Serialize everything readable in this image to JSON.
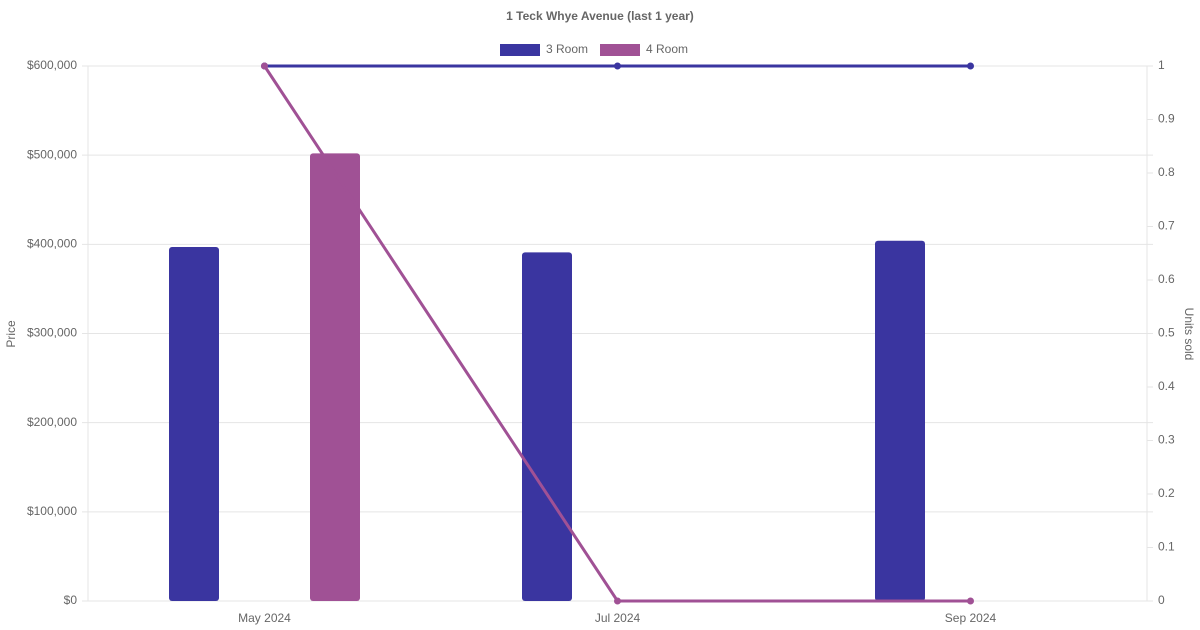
{
  "chart_data": {
    "type": "bar-line",
    "title": "1 Teck Whye Avenue (last 1 year)",
    "y_label": "Price",
    "y2_label": "Units sold",
    "categories": [
      "May 2024",
      "Jul 2024",
      "Sep 2024"
    ],
    "series": [
      {
        "name": "3 Room",
        "color": "#3a35a0",
        "values": [
          397000,
          391000,
          404000
        ],
        "units_sold": [
          1,
          1,
          1
        ]
      },
      {
        "name": "4 Room",
        "color": "#a05195",
        "values": [
          502000,
          null,
          null
        ],
        "units_sold": [
          1,
          0,
          0
        ]
      }
    ],
    "ylim": [
      0,
      600000
    ],
    "yticks": [
      {
        "value": 0,
        "label": "$0"
      },
      {
        "value": 100000,
        "label": "$100,000"
      },
      {
        "value": 200000,
        "label": "$200,000"
      },
      {
        "value": 300000,
        "label": "$300,000"
      },
      {
        "value": 400000,
        "label": "$400,000"
      },
      {
        "value": 500000,
        "label": "$500,000"
      },
      {
        "value": 600000,
        "label": "$600,000"
      }
    ],
    "y2lim": [
      0,
      1
    ],
    "y2ticks": [
      0,
      0.1,
      0.2,
      0.3,
      0.4,
      0.5,
      0.6,
      0.7,
      0.8,
      0.9,
      1
    ],
    "grid": true
  }
}
